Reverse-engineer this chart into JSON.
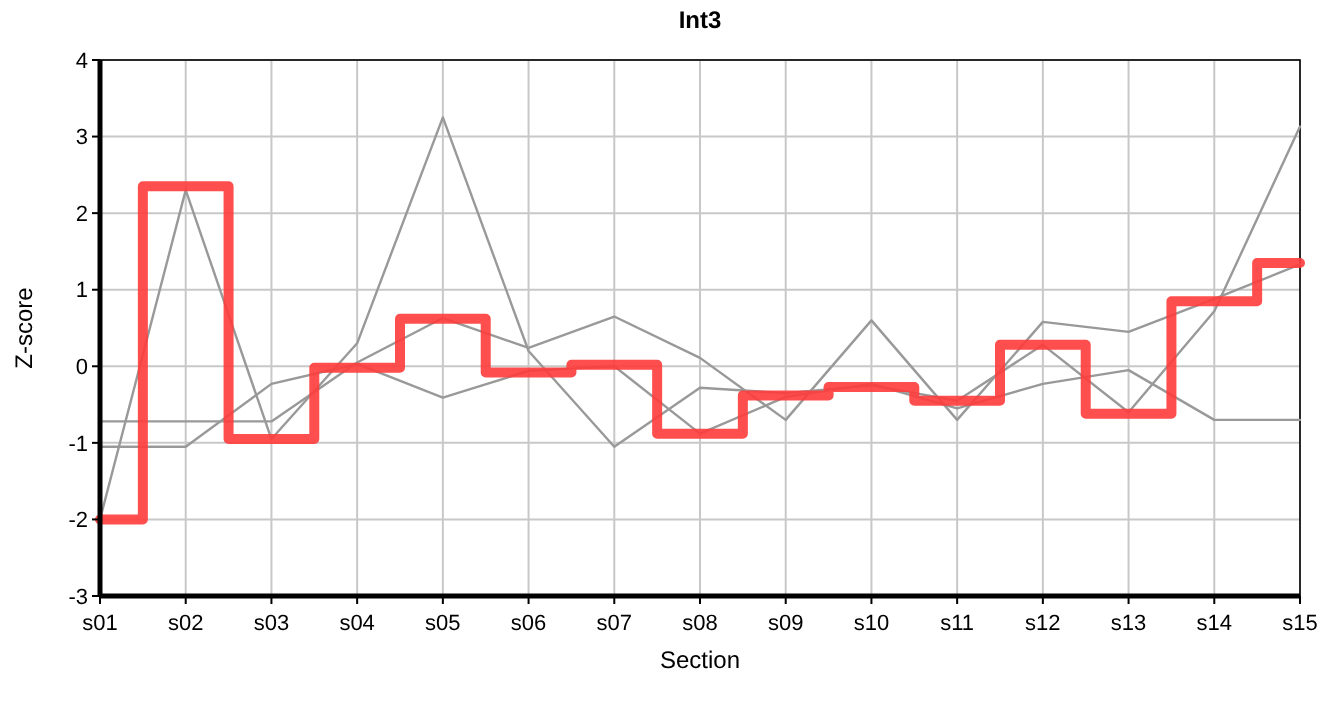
{
  "chart_data": {
    "type": "line",
    "title": "Int3",
    "xlabel": "Section",
    "ylabel": "Z-score",
    "categories": [
      "s01",
      "s02",
      "s03",
      "s04",
      "s05",
      "s06",
      "s07",
      "s08",
      "s09",
      "s10",
      "s11",
      "s12",
      "s13",
      "s14",
      "s15"
    ],
    "ylim": [
      -3,
      4
    ],
    "yticks": [
      -3,
      -2,
      -1,
      0,
      1,
      2,
      3,
      4
    ],
    "grid": true,
    "series": [
      {
        "color": "#999999",
        "values": [
          -2,
          2.3,
          -0.95,
          0.3,
          3.25,
          0.2,
          -1.05,
          -0.28,
          -0.35,
          -0.25,
          -0.45,
          0.28,
          -0.6,
          0.72,
          3.13
        ]
      },
      {
        "color": "#999999",
        "values": [
          -0.72,
          -0.72,
          -0.72,
          0.05,
          0.63,
          0.24,
          0.65,
          0.11,
          -0.7,
          0.6,
          -0.7,
          0.58,
          0.45,
          0.88,
          1.33
        ]
      },
      {
        "color": "#999999",
        "values": [
          -1.05,
          -1.05,
          -0.23,
          0.03,
          -0.41,
          -0.06,
          0,
          -0.88,
          -0.4,
          -0.23,
          -0.55,
          -0.23,
          -0.05,
          -0.7,
          -0.7
        ]
      },
      {
        "type": "step",
        "color": "#ff3b3b",
        "values": [
          -2,
          2.35,
          -0.95,
          -0.02,
          0.62,
          -0.08,
          0.02,
          -0.88,
          -0.38,
          -0.27,
          -0.45,
          0.28,
          -0.62,
          0.85,
          1.35
        ]
      }
    ]
  }
}
